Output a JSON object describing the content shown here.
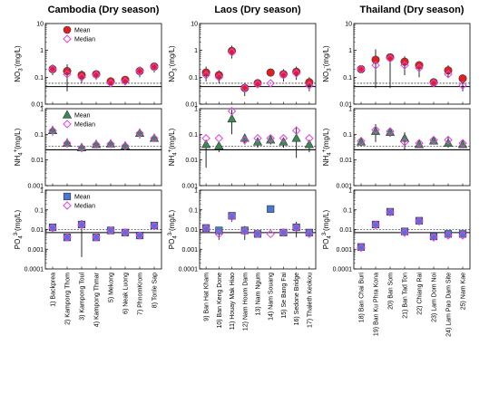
{
  "chart_data": {
    "type": "scatter",
    "scale": "log",
    "tick_labels": [
      "0.0001",
      "0.001",
      "0.01",
      "0.1",
      "1",
      "10"
    ],
    "legend_labels": {
      "mean": "Mean",
      "median": "Median"
    },
    "columns": [
      {
        "title": "Cambodia (Dry season)",
        "sites": [
          "1) Backprea",
          "2) Kampong Thom",
          "3) Kampong Toul",
          "4) Kampong Thmar",
          "5) Mekong",
          "6) Neak Luong",
          "7) PhnomKrom",
          "8) Tonle Sap"
        ]
      },
      {
        "title": "Laos (Dry season)",
        "sites": [
          "9) Ban Hat Kham",
          "10) Ban Keng Done",
          "11) Houay Mak Hiao",
          "12) Nam Houm Dam",
          "13) Nam Ngum",
          "14) Nam Souang",
          "15) Se Bang Fai",
          "16) Sedone Bridge",
          "17) Thaleth Keokou"
        ]
      },
      {
        "title": "Thailand (Dry season)",
        "sites": [
          "18) Ban Chai Buri",
          "19) Ban Ku Phra Kona",
          "20) Ban Som",
          "21) Ban Tad Ton",
          "22) Chiang Rai",
          "23) Lam Dom Noi",
          "24) Lam Pao Dam Site",
          "25) Nam Kae"
        ]
      }
    ],
    "rows": [
      {
        "ion": "NO3",
        "ylabel": {
          "base": "NO",
          "sub": "3",
          "sup": "-",
          "unit": "(mg/L)"
        },
        "ylim": [
          0.01,
          10
        ],
        "marker": "circle",
        "mean_color": "#e02020",
        "thresholds": [
          0.045,
          0.06
        ],
        "panels": [
          {
            "mean": [
              0.2,
              0.17,
              0.12,
              0.13,
              0.07,
              0.08,
              0.17,
              0.25
            ],
            "median": [
              0.2,
              0.13,
              0.1,
              0.12,
              0.06,
              0.07,
              0.17,
              0.24
            ],
            "err_lo": [
              0.12,
              0.03,
              0.06,
              0.08,
              0.05,
              0.06,
              0.1,
              0.15
            ],
            "err_hi": [
              0.3,
              0.3,
              0.18,
              0.17,
              0.09,
              0.1,
              0.25,
              0.35
            ]
          },
          {
            "mean": [
              0.15,
              0.12,
              0.95,
              0.04,
              0.06,
              0.15,
              0.13,
              0.16,
              0.065
            ],
            "median": [
              0.12,
              0.1,
              0.85,
              0.04,
              0.055,
              0.06,
              0.12,
              0.14,
              0.05
            ],
            "err_lo": [
              0.07,
              0.06,
              0.5,
              0.02,
              0.045,
              0.15,
              0.07,
              0.08,
              0.03
            ],
            "err_hi": [
              0.25,
              0.18,
              1.5,
              0.06,
              0.08,
              0.15,
              0.2,
              0.25,
              0.1
            ]
          },
          {
            "mean": [
              0.2,
              0.45,
              0.55,
              0.38,
              0.28,
              0.065,
              0.18,
              0.09
            ],
            "median": [
              0.2,
              0.28,
              0.5,
              0.28,
              0.22,
              0.06,
              0.13,
              0.05
            ],
            "err_lo": [
              0.15,
              0.04,
              0.04,
              0.12,
              0.1,
              0.045,
              0.1,
              0.03
            ],
            "err_hi": [
              0.25,
              1.1,
              0.75,
              0.6,
              0.4,
              0.08,
              0.28,
              0.13
            ]
          }
        ]
      },
      {
        "ion": "NH4",
        "ylabel": {
          "base": "NH",
          "sub": "4",
          "sup": "+",
          "unit": "(mg/L)"
        },
        "ylim": [
          0.001,
          1
        ],
        "marker": "triangle",
        "mean_color": "#3a8a55",
        "thresholds": [
          0.025,
          0.035
        ],
        "panels": [
          {
            "mean": [
              0.14,
              0.045,
              0.03,
              0.04,
              0.042,
              0.035,
              0.11,
              0.07
            ],
            "median": [
              0.14,
              0.045,
              0.03,
              0.04,
              0.042,
              0.035,
              0.11,
              0.07
            ],
            "err_lo": [
              0.09,
              0.03,
              0.02,
              0.03,
              0.03,
              0.025,
              0.07,
              0.05
            ],
            "err_hi": [
              0.2,
              0.07,
              0.045,
              0.06,
              0.06,
              0.05,
              0.16,
              0.1
            ]
          },
          {
            "mean": [
              0.04,
              0.035,
              0.4,
              0.07,
              0.05,
              0.06,
              0.05,
              0.07,
              0.04
            ],
            "median": [
              0.07,
              0.07,
              0.8,
              0.06,
              0.07,
              0.07,
              0.07,
              0.14,
              0.07
            ],
            "err_lo": [
              0.005,
              0.02,
              0.1,
              0.04,
              0.03,
              0.04,
              0.03,
              0.012,
              0.02
            ],
            "err_hi": [
              0.06,
              0.05,
              0.9,
              0.1,
              0.07,
              0.08,
              0.07,
              0.2,
              0.06
            ]
          },
          {
            "mean": [
              0.05,
              0.13,
              0.12,
              0.07,
              0.04,
              0.055,
              0.045,
              0.04
            ],
            "median": [
              0.055,
              0.15,
              0.13,
              0.05,
              0.045,
              0.06,
              0.06,
              0.045
            ],
            "err_lo": [
              0.035,
              0.05,
              0.08,
              0.025,
              0.03,
              0.04,
              0.03,
              0.03
            ],
            "err_hi": [
              0.07,
              0.25,
              0.18,
              0.12,
              0.06,
              0.07,
              0.08,
              0.06
            ]
          }
        ]
      },
      {
        "ion": "PO4",
        "ylabel": {
          "base": "PO",
          "sub": "4",
          "sup": "3-",
          "unit": "(mg/L)"
        },
        "ylim": [
          0.0001,
          1
        ],
        "marker": "square",
        "mean_color": "#4a78d0",
        "thresholds": [
          0.007,
          0.01
        ],
        "panels": [
          {
            "mean": [
              0.013,
              0.004,
              0.018,
              0.004,
              0.009,
              0.007,
              0.005,
              0.016
            ],
            "median": [
              0.012,
              0.004,
              0.017,
              0.004,
              0.009,
              0.007,
              0.005,
              0.015
            ],
            "err_lo": [
              0.008,
              0.003,
              0.0004,
              0.003,
              0.007,
              0.005,
              0.004,
              0.01
            ],
            "err_hi": [
              0.018,
              0.006,
              0.03,
              0.006,
              0.012,
              0.009,
              0.007,
              0.025
            ]
          },
          {
            "mean": [
              0.012,
              0.009,
              0.05,
              0.009,
              0.006,
              0.11,
              0.007,
              0.013,
              0.007
            ],
            "median": [
              0.011,
              0.006,
              0.045,
              0.008,
              0.006,
              0.006,
              0.007,
              0.012,
              0.006
            ],
            "err_lo": [
              0.007,
              0.003,
              0.025,
              0.003,
              0.005,
              0.1,
              0.005,
              0.004,
              0.005
            ],
            "err_hi": [
              0.017,
              0.012,
              0.075,
              0.015,
              0.008,
              0.12,
              0.009,
              0.025,
              0.009
            ]
          },
          {
            "mean": [
              0.0013,
              0.018,
              0.08,
              0.008,
              0.028,
              0.0045,
              0.006,
              0.006
            ],
            "median": [
              0.0012,
              0.017,
              0.075,
              0.007,
              0.026,
              0.004,
              0.005,
              0.005
            ],
            "err_lo": [
              0.001,
              0.013,
              0.05,
              0.006,
              0.02,
              0.003,
              0.004,
              0.0045
            ],
            "err_hi": [
              0.0017,
              0.024,
              0.11,
              0.01,
              0.036,
              0.006,
              0.008,
              0.008
            ]
          }
        ]
      }
    ]
  }
}
